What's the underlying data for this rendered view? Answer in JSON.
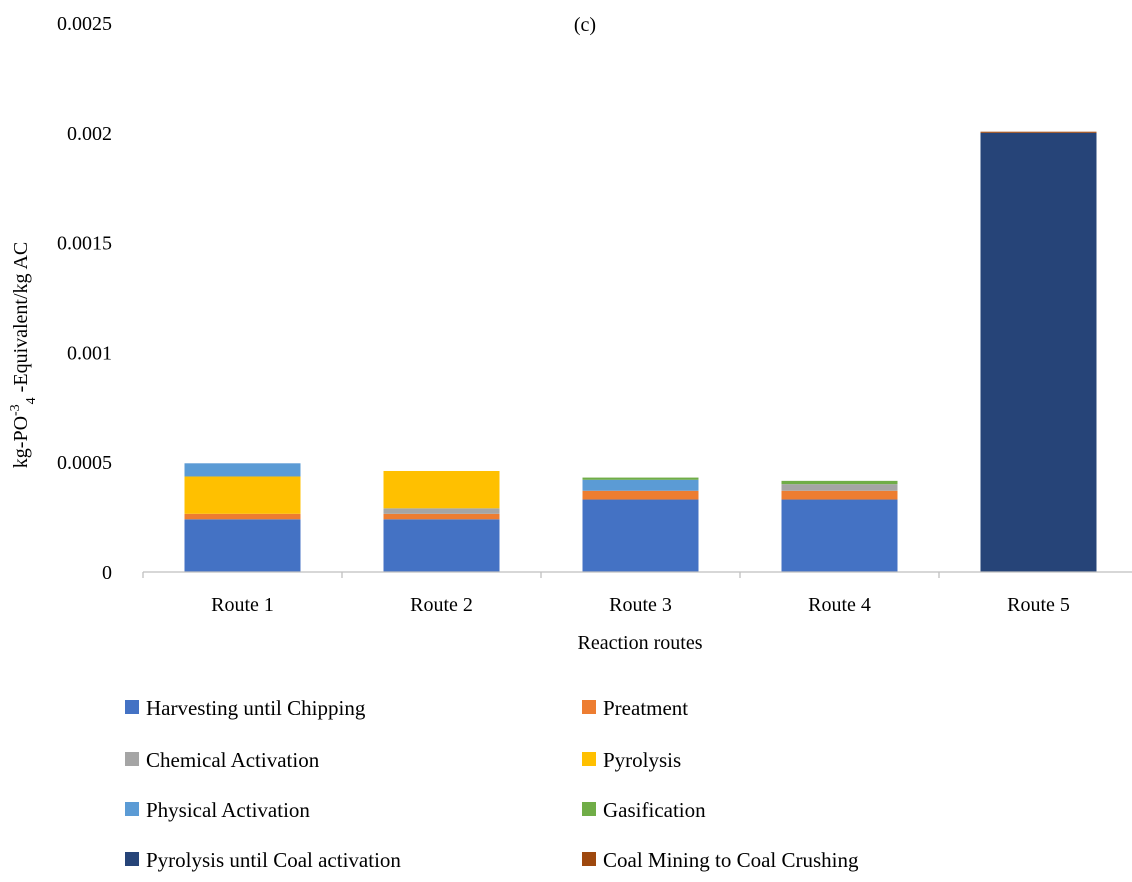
{
  "chart_data": {
    "type": "bar",
    "stacked": true,
    "title": "(c)",
    "xlabel": "Reaction routes",
    "ylabel": {
      "base": "kg-PO",
      "superscript": "-3",
      "subscript": "4",
      "rest": " -Equivalent/kg  AC"
    },
    "ylim": [
      0,
      0.0025
    ],
    "yticks": [
      0,
      0.0005,
      0.001,
      0.0015,
      0.002,
      0.0025
    ],
    "ytick_labels": [
      "0",
      "0.0005",
      "0.001",
      "0.0015",
      "0.002",
      "0.0025"
    ],
    "grid": false,
    "legend_position": "bottom",
    "categories": [
      "Route 1",
      "Route 2",
      "Route 3",
      "Route 4",
      "Route 5"
    ],
    "series": [
      {
        "name": "Harvesting until Chipping",
        "color": "#4472C4",
        "values": [
          0.00024,
          0.00024,
          0.00033,
          0.00033,
          0
        ]
      },
      {
        "name": "Preatment",
        "color": "#ED7D31",
        "values": [
          2.5e-05,
          2.5e-05,
          4e-05,
          4e-05,
          0
        ]
      },
      {
        "name": "Chemical Activation",
        "color": "#A5A5A5",
        "values": [
          0,
          2.5e-05,
          0,
          3e-05,
          0
        ]
      },
      {
        "name": "Pyrolysis",
        "color": "#FFC000",
        "values": [
          0.00017,
          0.00017,
          0,
          0,
          0
        ]
      },
      {
        "name": "Physical Activation",
        "color": "#5B9BD5",
        "values": [
          6e-05,
          0,
          5e-05,
          0,
          0
        ]
      },
      {
        "name": "Gasification",
        "color": "#70AD47",
        "values": [
          0,
          0,
          1e-05,
          1.5e-05,
          0
        ]
      },
      {
        "name": "Pyrolysis until Coal activation",
        "color": "#264478",
        "values": [
          0,
          0,
          0,
          0,
          0.002
        ]
      },
      {
        "name": "Coal Mining to Coal Crushing",
        "color": "#9E480E",
        "values": [
          0,
          0,
          0,
          0,
          5e-06
        ]
      }
    ]
  }
}
